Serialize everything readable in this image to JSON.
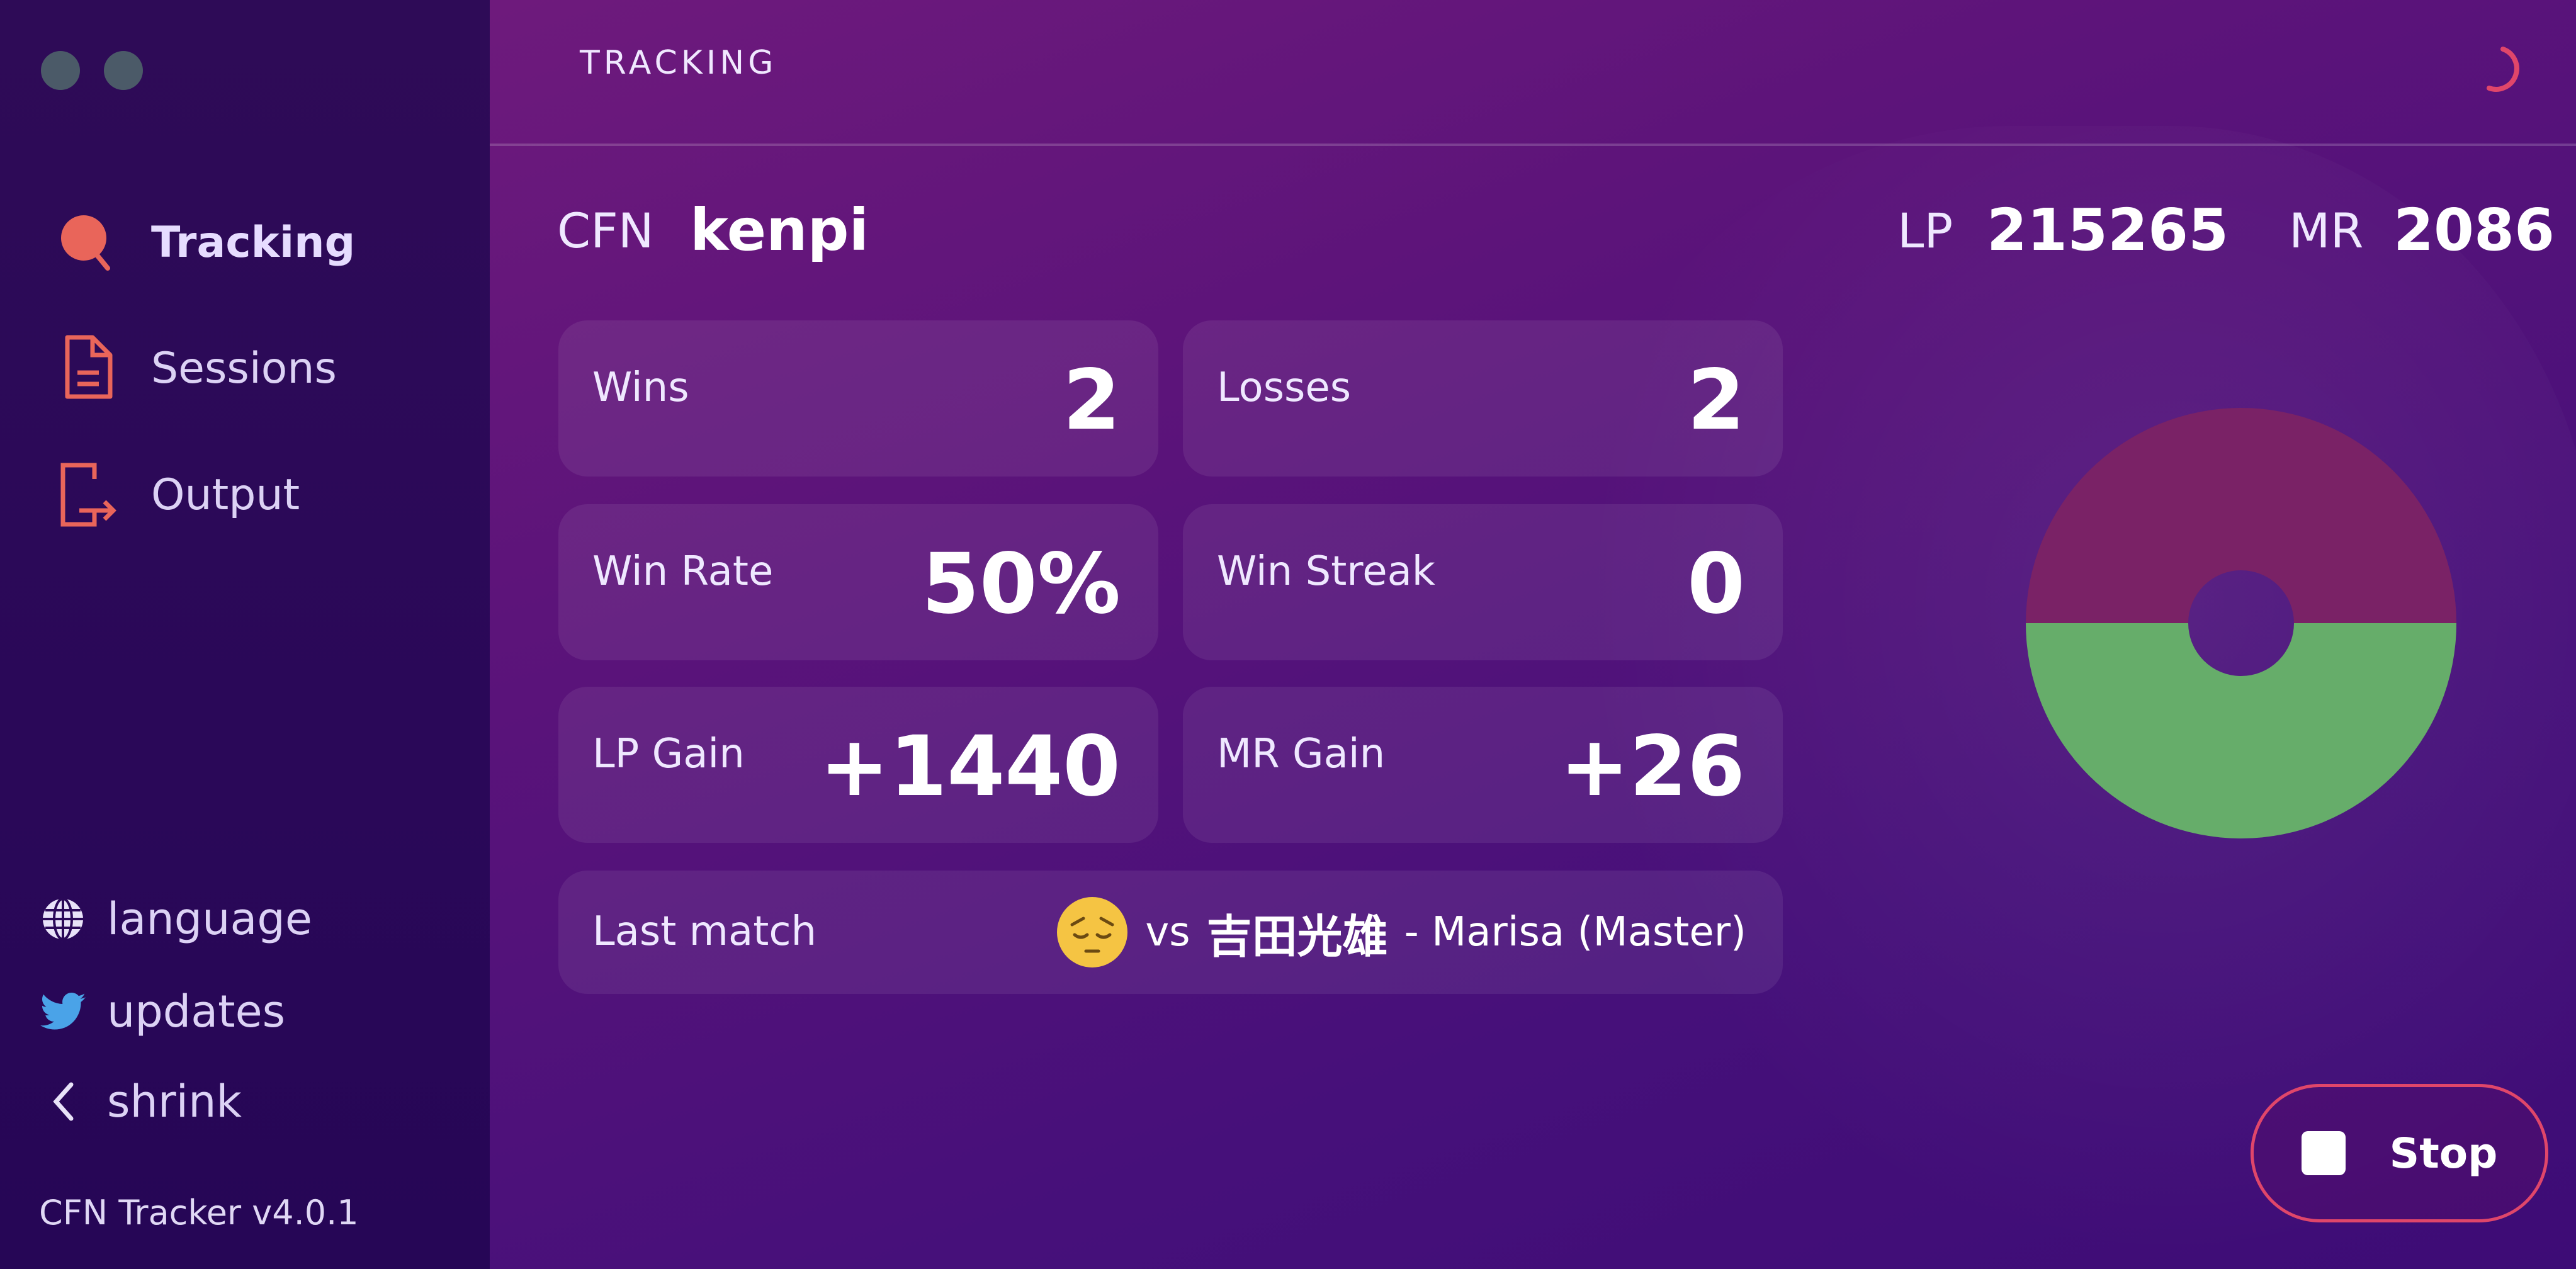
{
  "sidebar": {
    "window_controls": [
      "close",
      "minimize"
    ],
    "nav": [
      {
        "label": "Tracking",
        "icon": "search-icon",
        "active": true
      },
      {
        "label": "Sessions",
        "icon": "document-icon"
      },
      {
        "label": "Output",
        "icon": "export-icon"
      }
    ],
    "footer": [
      {
        "label": "language",
        "icon": "globe-icon"
      },
      {
        "label": "updates",
        "icon": "twitter-icon"
      },
      {
        "label": "shrink",
        "icon": "chevron-left-icon"
      }
    ],
    "version": "CFN Tracker v4.0.1"
  },
  "header": {
    "title": "TRACKING",
    "status_icon": "loading-spinner-icon"
  },
  "player": {
    "cfn_label": "CFN",
    "cfn": "kenpi",
    "lp_label": "LP",
    "lp": "215265",
    "mr_label": "MR",
    "mr": "2086"
  },
  "stats": [
    {
      "label": "Wins",
      "value": "2"
    },
    {
      "label": "Losses",
      "value": "2"
    },
    {
      "label": "Win Rate",
      "value": "50%"
    },
    {
      "label": "Win Streak",
      "value": "0"
    },
    {
      "label": "LP Gain",
      "value": "+1440"
    },
    {
      "label": "MR Gain",
      "value": "+26"
    }
  ],
  "last_match": {
    "label": "Last match",
    "result_emoji": "pensive-face-icon",
    "vs": "vs",
    "opponent": "吉田光雄",
    "detail": "- Marisa (Master)"
  },
  "colors": {
    "accent": "#e0466a",
    "win": "#66ad6a",
    "loss": "#7a2266"
  },
  "chart_data": {
    "type": "pie",
    "donut": true,
    "categories": [
      "Losses",
      "Wins"
    ],
    "values": [
      2,
      2
    ],
    "colors": [
      "#7a2266",
      "#66ad6a"
    ]
  },
  "stop_button": {
    "label": "Stop"
  }
}
